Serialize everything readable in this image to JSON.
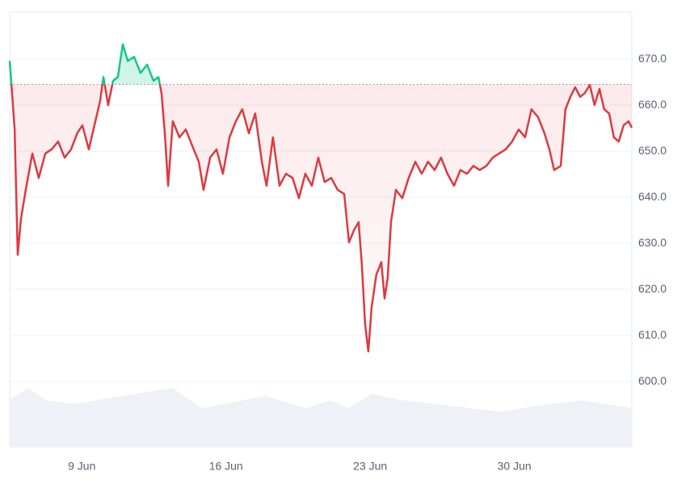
{
  "chart_data": {
    "type": "baseline-line",
    "x": [
      5.5,
      5.58,
      5.74,
      5.89,
      6.05,
      6.28,
      6.6,
      6.91,
      7.23,
      7.54,
      7.85,
      8.17,
      8.48,
      8.79,
      9.03,
      9.34,
      9.66,
      9.89,
      10.05,
      10.28,
      10.52,
      10.75,
      10.99,
      11.23,
      11.54,
      11.85,
      12.17,
      12.48,
      12.72,
      12.87,
      13.03,
      13.19,
      13.42,
      13.74,
      14.05,
      14.36,
      14.68,
      14.91,
      15.23,
      15.54,
      15.85,
      16.17,
      16.48,
      16.79,
      17.11,
      17.42,
      17.74,
      17.97,
      18.28,
      18.6,
      18.91,
      19.23,
      19.54,
      19.85,
      20.17,
      20.48,
      20.79,
      21.11,
      21.42,
      21.74,
      21.97,
      22.21,
      22.44,
      22.6,
      22.75,
      22.91,
      23.07,
      23.3,
      23.54,
      23.7,
      23.85,
      24.01,
      24.25,
      24.56,
      24.87,
      25.19,
      25.5,
      25.81,
      26.13,
      26.44,
      26.75,
      27.07,
      27.38,
      27.7,
      28.01,
      28.32,
      28.64,
      28.95,
      29.26,
      29.58,
      29.89,
      30.21,
      30.52,
      30.83,
      31.15,
      31.46,
      31.7,
      31.93,
      32.25,
      32.48,
      32.72,
      32.95,
      33.19,
      33.42,
      33.66,
      33.89,
      34.13,
      34.36,
      34.6,
      34.83,
      35.07,
      35.3,
      35.54,
      35.7
    ],
    "values": [
      669.6,
      664.9,
      654.7,
      627.5,
      635.4,
      641.6,
      649.5,
      644.2,
      649.5,
      650.4,
      652.1,
      648.6,
      650.4,
      654,
      655.6,
      650.4,
      656.5,
      660.9,
      666.1,
      660,
      665.3,
      666.1,
      673.2,
      669.6,
      670.5,
      667,
      668.8,
      665.3,
      666.1,
      662.6,
      653.9,
      642.5,
      656.5,
      653,
      654.7,
      651.2,
      647.7,
      641.6,
      648.6,
      650.4,
      645.1,
      653,
      656.5,
      659.1,
      653.9,
      658.2,
      647.7,
      642.5,
      653,
      642.5,
      645.1,
      644.2,
      639.8,
      645.1,
      642.5,
      648.6,
      643.3,
      644.2,
      641.6,
      640.7,
      630.2,
      632.8,
      634.6,
      625,
      612.6,
      606.5,
      616.1,
      623.2,
      625.9,
      618,
      622.5,
      634.6,
      641.6,
      639.8,
      644.2,
      647.7,
      645.1,
      647.7,
      645.9,
      648.6,
      645.1,
      642.5,
      645.9,
      645.1,
      646.8,
      645.9,
      646.8,
      648.6,
      649.5,
      650.4,
      652.1,
      654.7,
      653,
      659.1,
      657.4,
      653.9,
      650.4,
      645.9,
      646.8,
      659.1,
      661.8,
      663.9,
      661.8,
      662.6,
      664.4,
      660,
      663.5,
      659.1,
      658.2,
      653,
      652.1,
      655.6,
      656.5,
      655.1
    ],
    "baseline": 664.5,
    "up_color": "#16c784",
    "down_color": "#dc3a41",
    "volume": {
      "color": "#eef1f5",
      "x": [
        5.5,
        6.4,
        7.3,
        8.6,
        10.9,
        13.4,
        14.8,
        17.9,
        19.9,
        21.1,
        21.9,
        23.1,
        24.6,
        26.2,
        29.3,
        31.7,
        33.3,
        35.7
      ],
      "values": [
        596,
        598.6,
        595.9,
        595.1,
        596.8,
        598.6,
        594.2,
        596.8,
        594.2,
        595.9,
        594.2,
        597.3,
        595.9,
        595.1,
        593.4,
        595.1,
        595.9,
        594.2
      ]
    },
    "xlim": [
      5.5,
      35.7
    ],
    "xticks": [
      {
        "value": 9,
        "label": "9 Jun"
      },
      {
        "value": 16,
        "label": "16 Jun"
      },
      {
        "value": 23,
        "label": "23 Jun"
      },
      {
        "value": 30,
        "label": "30 Jun"
      }
    ],
    "ylim": [
      585.8,
      680.2
    ],
    "yticks": [
      {
        "value": 600,
        "label": "600.0"
      },
      {
        "value": 610,
        "label": "610.0"
      },
      {
        "value": 620,
        "label": "620.0"
      },
      {
        "value": 630,
        "label": "630.0"
      },
      {
        "value": 640,
        "label": "640.0"
      },
      {
        "value": 650,
        "label": "650.0"
      },
      {
        "value": 660,
        "label": "660.0"
      },
      {
        "value": 670,
        "label": "670.0"
      }
    ],
    "grid": true
  }
}
